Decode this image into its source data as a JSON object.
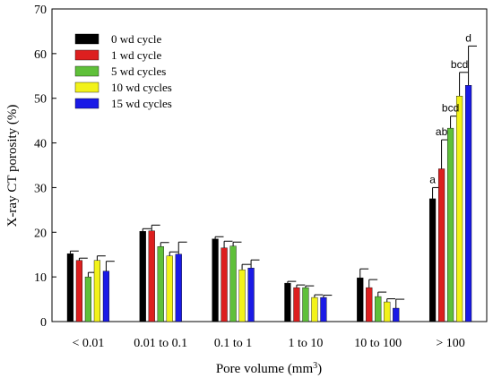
{
  "chart_data": {
    "type": "bar",
    "title": "",
    "xlabel": "Pore volume (mm",
    "xlabel_sup": "3",
    "xlabel_close": ")",
    "ylabel": "X-ray CT porosity (%)",
    "ylim": [
      0,
      70
    ],
    "yticks": [
      0,
      10,
      20,
      30,
      40,
      50,
      60,
      70
    ],
    "grid": false,
    "legend_position": "top-left",
    "categories": [
      "< 0.01",
      "0.01 to 0.1",
      "0.1 to 1",
      "1 to 10",
      "10 to 100",
      "> 100"
    ],
    "series": [
      {
        "name": "0 wd cycle",
        "color": "#000000",
        "values": [
          15.2,
          20.2,
          18.5,
          8.6,
          9.8,
          27.5
        ],
        "errors": [
          0.6,
          0.6,
          0.5,
          0.4,
          2.0,
          2.5
        ]
      },
      {
        "name": "1 wd cycle",
        "color": "#dd1f1f",
        "values": [
          13.7,
          20.3,
          16.5,
          7.6,
          7.6,
          34.2
        ],
        "errors": [
          0.5,
          1.3,
          1.5,
          0.6,
          1.8,
          6.5
        ]
      },
      {
        "name": "5 wd cycles",
        "color": "#5fc03a",
        "values": [
          10.0,
          16.8,
          16.9,
          7.6,
          5.6,
          43.3
        ],
        "errors": [
          1.0,
          0.9,
          0.9,
          0.4,
          1.0,
          2.7
        ]
      },
      {
        "name": "10 wd cycles",
        "color": "#f2f21a",
        "values": [
          13.7,
          14.7,
          11.6,
          5.4,
          4.4,
          50.5
        ],
        "errors": [
          1.0,
          0.9,
          1.2,
          0.6,
          0.7,
          5.3
        ]
      },
      {
        "name": "15 wd cycles",
        "color": "#1a1ae6",
        "values": [
          11.3,
          15.1,
          12.0,
          5.4,
          3.0,
          52.9
        ],
        "errors": [
          2.2,
          2.7,
          1.8,
          0.5,
          2.0,
          8.8
        ]
      }
    ],
    "annotations": {
      "category": "> 100",
      "labels": [
        "a",
        "ab",
        "bcd",
        "bcd",
        "d"
      ]
    }
  }
}
